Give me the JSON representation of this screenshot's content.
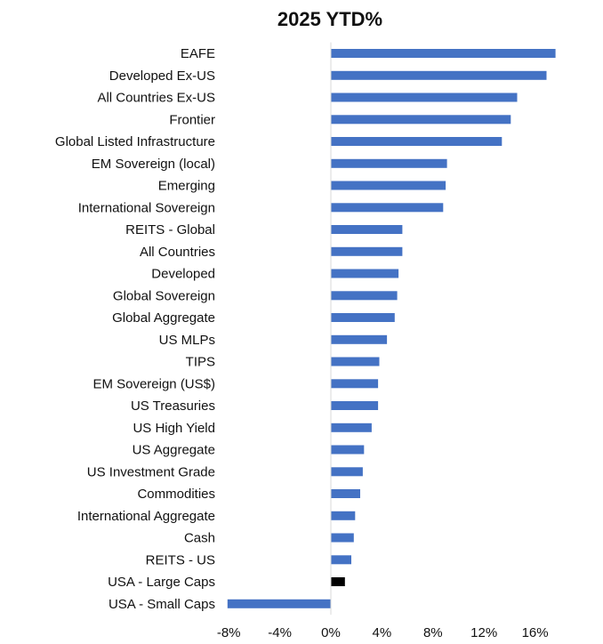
{
  "chart_data": {
    "type": "bar",
    "orientation": "horizontal",
    "title": "2025 YTD%",
    "xlabel": "",
    "ylabel": "",
    "unit": "%",
    "xlim": [
      -8,
      18
    ],
    "xticks": [
      -8,
      -4,
      0,
      4,
      8,
      12,
      16
    ],
    "tick_labels": [
      "-8%",
      "-4%",
      "0%",
      "4%",
      "8%",
      "12%",
      "16%"
    ],
    "grid": false,
    "legend": "none",
    "categories": [
      "EAFE",
      "Developed Ex-US",
      "All Countries Ex-US",
      "Frontier",
      "Global Listed Infrastructure",
      "EM Sovereign (local)",
      "Emerging",
      "International Sovereign",
      "REITS - Global",
      "All Countries",
      "Developed",
      "Global Sovereign",
      "Global Aggregate",
      "US MLPs",
      "TIPS",
      "EM Sovereign (US$)",
      "US Treasuries",
      "US High Yield",
      "US Aggregate",
      "US Investment Grade",
      "Commodities",
      "International Aggregate",
      "Cash",
      "REITS - US",
      "USA - Large Caps",
      "USA - Small Caps"
    ],
    "values": [
      17.6,
      16.9,
      14.6,
      14.1,
      13.4,
      9.1,
      9.0,
      8.8,
      5.6,
      5.6,
      5.3,
      5.2,
      5.0,
      4.4,
      3.8,
      3.7,
      3.7,
      3.2,
      2.6,
      2.5,
      2.3,
      1.9,
      1.8,
      1.6,
      1.1,
      -8.1
    ],
    "colors": {
      "default": "#4472C4",
      "highlight": "#000000"
    },
    "highlight_categories": [
      "USA - Large Caps"
    ]
  }
}
